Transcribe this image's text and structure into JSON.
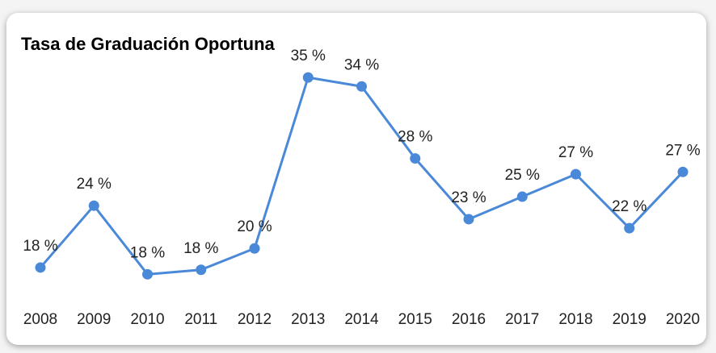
{
  "chart_data": {
    "type": "line",
    "title": "Tasa de Graduación Oportuna",
    "categories": [
      "2008",
      "2009",
      "2010",
      "2011",
      "2012",
      "2013",
      "2014",
      "2015",
      "2016",
      "2017",
      "2018",
      "2019",
      "2020"
    ],
    "values": [
      18.3,
      23.8,
      17.7,
      18.1,
      20.0,
      35.2,
      34.4,
      28.0,
      22.6,
      24.6,
      26.6,
      21.8,
      26.8
    ],
    "value_labels": [
      "18 %",
      "24 %",
      "18 %",
      "18 %",
      "20 %",
      "35 %",
      "34 %",
      "28 %",
      "23 %",
      "25 %",
      "27 %",
      "22 %",
      "27 %"
    ],
    "color": "#4a88d8",
    "ylim": [
      15,
      37
    ]
  }
}
